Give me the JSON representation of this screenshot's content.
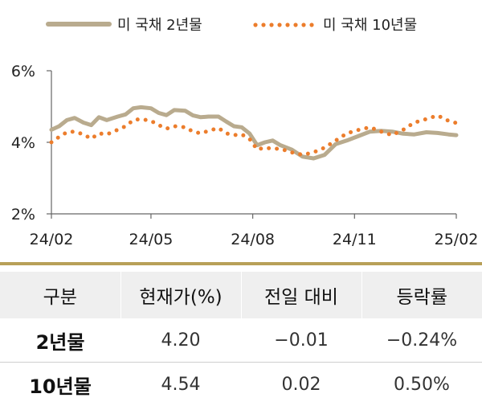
{
  "chart_data": {
    "type": "line",
    "title": "",
    "xlabel": "",
    "ylabel": "",
    "y_unit": "%",
    "ylim": [
      2,
      6
    ],
    "xlim": [
      "2024-02-01",
      "2025-02-01"
    ],
    "y_ticks": [
      2,
      4,
      6
    ],
    "y_tick_labels": [
      "2%",
      "4%",
      "6%"
    ],
    "x_ticks": [
      "2024-02-01",
      "2024-05-01",
      "2024-08-01",
      "2024-11-01",
      "2025-02-01"
    ],
    "x_tick_labels": [
      "24/02",
      "24/05",
      "24/08",
      "24/11",
      "25/02"
    ],
    "grid": false,
    "legend_position": "top",
    "series": [
      {
        "name": "미 국채 2년물",
        "style": "solid",
        "color": "#b9ab8e",
        "points": [
          [
            "2024-02-01",
            4.35
          ],
          [
            "2024-02-08",
            4.45
          ],
          [
            "2024-02-15",
            4.62
          ],
          [
            "2024-02-22",
            4.68
          ],
          [
            "2024-03-01",
            4.55
          ],
          [
            "2024-03-08",
            4.48
          ],
          [
            "2024-03-15",
            4.7
          ],
          [
            "2024-03-22",
            4.62
          ],
          [
            "2024-04-01",
            4.72
          ],
          [
            "2024-04-08",
            4.78
          ],
          [
            "2024-04-15",
            4.95
          ],
          [
            "2024-04-22",
            4.98
          ],
          [
            "2024-05-01",
            4.95
          ],
          [
            "2024-05-08",
            4.82
          ],
          [
            "2024-05-15",
            4.76
          ],
          [
            "2024-05-22",
            4.9
          ],
          [
            "2024-06-01",
            4.88
          ],
          [
            "2024-06-08",
            4.75
          ],
          [
            "2024-06-15",
            4.7
          ],
          [
            "2024-06-22",
            4.72
          ],
          [
            "2024-07-01",
            4.72
          ],
          [
            "2024-07-08",
            4.58
          ],
          [
            "2024-07-15",
            4.45
          ],
          [
            "2024-07-22",
            4.42
          ],
          [
            "2024-07-29",
            4.25
          ],
          [
            "2024-08-05",
            3.92
          ],
          [
            "2024-08-12",
            4.0
          ],
          [
            "2024-08-19",
            4.05
          ],
          [
            "2024-08-26",
            3.92
          ],
          [
            "2024-09-05",
            3.8
          ],
          [
            "2024-09-15",
            3.6
          ],
          [
            "2024-09-25",
            3.55
          ],
          [
            "2024-10-05",
            3.65
          ],
          [
            "2024-10-15",
            3.95
          ],
          [
            "2024-10-25",
            4.05
          ],
          [
            "2024-11-05",
            4.18
          ],
          [
            "2024-11-15",
            4.3
          ],
          [
            "2024-11-25",
            4.32
          ],
          [
            "2024-12-05",
            4.3
          ],
          [
            "2024-12-15",
            4.24
          ],
          [
            "2024-12-25",
            4.22
          ],
          [
            "2025-01-05",
            4.28
          ],
          [
            "2025-01-15",
            4.26
          ],
          [
            "2025-01-25",
            4.22
          ],
          [
            "2025-02-01",
            4.2
          ]
        ]
      },
      {
        "name": "미 국채 10년물",
        "style": "dotted",
        "color": "#ec7d2c",
        "points": [
          [
            "2024-02-01",
            4.0
          ],
          [
            "2024-02-08",
            4.15
          ],
          [
            "2024-02-15",
            4.28
          ],
          [
            "2024-02-22",
            4.3
          ],
          [
            "2024-03-01",
            4.22
          ],
          [
            "2024-03-08",
            4.1
          ],
          [
            "2024-03-15",
            4.25
          ],
          [
            "2024-03-22",
            4.22
          ],
          [
            "2024-04-01",
            4.35
          ],
          [
            "2024-04-08",
            4.45
          ],
          [
            "2024-04-15",
            4.62
          ],
          [
            "2024-04-22",
            4.65
          ],
          [
            "2024-05-01",
            4.6
          ],
          [
            "2024-05-08",
            4.48
          ],
          [
            "2024-05-15",
            4.38
          ],
          [
            "2024-05-22",
            4.45
          ],
          [
            "2024-06-01",
            4.42
          ],
          [
            "2024-06-08",
            4.3
          ],
          [
            "2024-06-15",
            4.25
          ],
          [
            "2024-06-22",
            4.32
          ],
          [
            "2024-07-01",
            4.4
          ],
          [
            "2024-07-08",
            4.25
          ],
          [
            "2024-07-15",
            4.2
          ],
          [
            "2024-07-22",
            4.22
          ],
          [
            "2024-07-29",
            4.1
          ],
          [
            "2024-08-05",
            3.8
          ],
          [
            "2024-08-12",
            3.85
          ],
          [
            "2024-08-19",
            3.82
          ],
          [
            "2024-08-26",
            3.82
          ],
          [
            "2024-09-05",
            3.72
          ],
          [
            "2024-09-15",
            3.65
          ],
          [
            "2024-09-25",
            3.72
          ],
          [
            "2024-10-05",
            3.85
          ],
          [
            "2024-10-15",
            4.05
          ],
          [
            "2024-10-25",
            4.25
          ],
          [
            "2024-11-05",
            4.35
          ],
          [
            "2024-11-15",
            4.42
          ],
          [
            "2024-11-25",
            4.3
          ],
          [
            "2024-12-05",
            4.2
          ],
          [
            "2024-12-15",
            4.35
          ],
          [
            "2024-12-25",
            4.55
          ],
          [
            "2025-01-05",
            4.65
          ],
          [
            "2025-01-15",
            4.75
          ],
          [
            "2025-01-25",
            4.6
          ],
          [
            "2025-02-01",
            4.54
          ]
        ]
      }
    ]
  },
  "table": {
    "headers": [
      "구분",
      "현재가(%)",
      "전일 대비",
      "등락률"
    ],
    "rows": [
      [
        "2년물",
        "4.20",
        "−0.01",
        "−0.24%"
      ],
      [
        "10년물",
        "4.54",
        "0.02",
        "0.50%"
      ]
    ]
  }
}
